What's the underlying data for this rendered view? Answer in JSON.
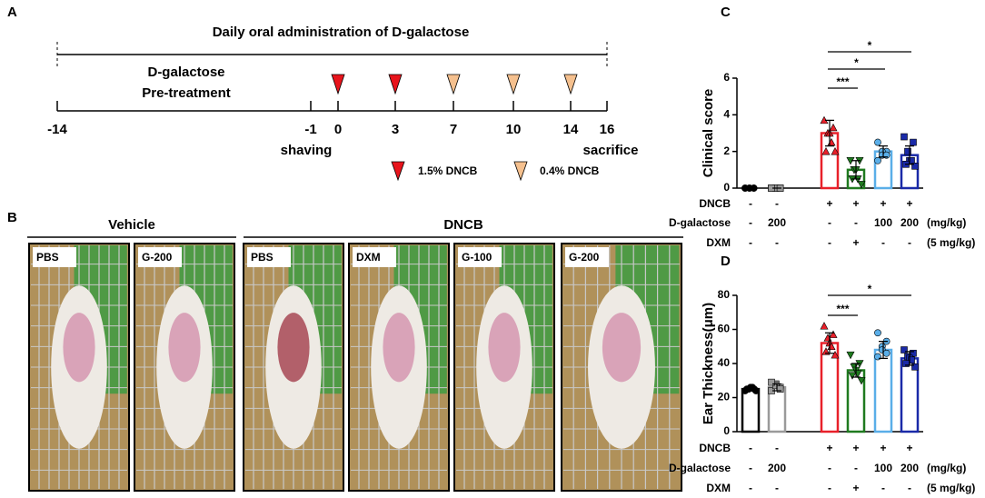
{
  "panel_a": {
    "letter": "A",
    "title": "Daily oral administration of D-galactose",
    "pretreatment": [
      "D-galactose",
      "Pre-treatment"
    ],
    "days": [
      -14,
      -1,
      0,
      3,
      7,
      10,
      14,
      16
    ],
    "shaving": "shaving",
    "sacrifice": "sacrifice",
    "legend": [
      "1.5% DNCB",
      "0.4% DNCB"
    ]
  },
  "panel_b": {
    "letter": "B",
    "groups": [
      {
        "label": "Vehicle",
        "photos": [
          "PBS",
          "G-200"
        ]
      },
      {
        "label": "DNCB",
        "photos": [
          "PBS",
          "DXM",
          "G-100",
          "G-200"
        ]
      }
    ]
  },
  "chart_data": [
    {
      "type": "bar",
      "letter": "C",
      "ylabel": "Clinical score",
      "categories": [
        null,
        null,
        null,
        null,
        null,
        null
      ],
      "colors": [
        "#000000",
        "#9a9a9a",
        "#e8202a",
        "#1f7a1f",
        "#5aaee8",
        "#1a2aa8"
      ],
      "markers": [
        "circle",
        "square",
        "triangle",
        "triangle-down",
        "circle",
        "square"
      ],
      "values": [
        0,
        0,
        3.0,
        1.0,
        2.0,
        1.8
      ],
      "errors": [
        0,
        0,
        0.7,
        0.5,
        0.3,
        0.5
      ],
      "points": [
        [
          0,
          0,
          0,
          0,
          0,
          0
        ],
        [
          0,
          0,
          0,
          0,
          0,
          0
        ],
        [
          3.7,
          3.3,
          3.0,
          3.0,
          2.5,
          2.0,
          2.0
        ],
        [
          1.5,
          1.5,
          1.0,
          1.0,
          0.5,
          0.5,
          0.2
        ],
        [
          2.5,
          2.0,
          2.0,
          1.8,
          1.8,
          1.5
        ],
        [
          2.8,
          2.5,
          2.0,
          1.5,
          1.5,
          1.3,
          1.2
        ]
      ],
      "ylim": [
        0,
        6
      ],
      "yticks": [
        0,
        2,
        4,
        6
      ],
      "significance": [
        "***",
        "*",
        "*"
      ],
      "table": [
        {
          "label": "DNCB",
          "cells": [
            "-",
            "-",
            "+",
            "+",
            "+",
            "+"
          ]
        },
        {
          "label": "D-galactose",
          "cells": [
            "-",
            "200",
            "-",
            "-",
            "100",
            "200"
          ],
          "unit": "(mg/kg)"
        },
        {
          "label": "DXM",
          "cells": [
            "-",
            "-",
            "-",
            "+",
            "-",
            "-"
          ],
          "unit": "(5 mg/kg)"
        }
      ]
    },
    {
      "type": "bar",
      "letter": "D",
      "ylabel": "Ear Thickness(μm)",
      "categories": [
        null,
        null,
        null,
        null,
        null,
        null
      ],
      "colors": [
        "#000000",
        "#9a9a9a",
        "#e8202a",
        "#1f7a1f",
        "#5aaee8",
        "#1a2aa8"
      ],
      "markers": [
        "circle",
        "square",
        "triangle",
        "triangle-down",
        "circle",
        "square"
      ],
      "values": [
        25,
        26,
        52,
        36,
        48,
        43
      ],
      "errors": [
        1,
        2,
        6,
        4,
        5,
        4
      ],
      "points": [
        [
          24,
          25,
          25,
          26,
          26,
          25,
          24
        ],
        [
          24,
          26,
          28,
          27,
          25,
          29
        ],
        [
          62,
          57,
          55,
          52,
          50,
          47,
          45
        ],
        [
          45,
          40,
          38,
          36,
          34,
          33,
          30
        ],
        [
          58,
          53,
          50,
          48,
          46,
          44
        ],
        [
          48,
          46,
          44,
          43,
          42,
          40,
          38
        ]
      ],
      "ylim": [
        0,
        80
      ],
      "yticks": [
        0,
        20,
        40,
        60,
        80
      ],
      "significance": [
        "***",
        "*"
      ],
      "table": [
        {
          "label": "DNCB",
          "cells": [
            "-",
            "-",
            "+",
            "+",
            "+",
            "+"
          ]
        },
        {
          "label": "D-galactose",
          "cells": [
            "-",
            "200",
            "-",
            "-",
            "100",
            "200"
          ],
          "unit": "(mg/kg)"
        },
        {
          "label": "DXM",
          "cells": [
            "-",
            "-",
            "-",
            "+",
            "-",
            "-"
          ],
          "unit": "(5 mg/kg)"
        }
      ]
    }
  ]
}
